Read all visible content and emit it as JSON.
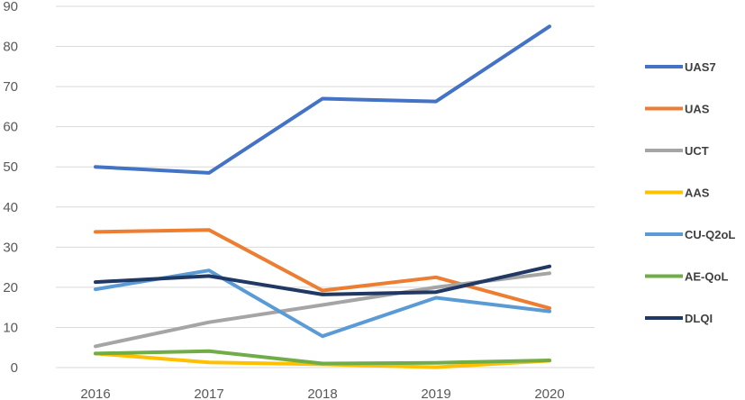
{
  "chart_data": {
    "type": "line",
    "title": "",
    "xlabel": "",
    "ylabel": "",
    "x": [
      "2016",
      "2017",
      "2018",
      "2019",
      "2020"
    ],
    "ylim": [
      0,
      90
    ],
    "yticks": [
      0,
      10,
      20,
      30,
      40,
      50,
      60,
      70,
      80,
      90
    ],
    "grid": true,
    "legend_position": "right",
    "series": [
      {
        "name": "UAS7",
        "color": "#4472C4",
        "values": [
          50,
          48.5,
          67,
          66.3,
          85
        ]
      },
      {
        "name": "UAS",
        "color": "#ED7D31",
        "values": [
          33.8,
          34.3,
          19.2,
          22.5,
          14.8
        ]
      },
      {
        "name": "UCT",
        "color": "#A5A5A5",
        "values": [
          5.3,
          11.3,
          15.6,
          20,
          23.5
        ]
      },
      {
        "name": "AAS",
        "color": "#FFC000",
        "values": [
          3.5,
          1.3,
          0.8,
          0.1,
          1.7
        ]
      },
      {
        "name": "CU-Q2oL",
        "color": "#5B9BD5",
        "values": [
          19.5,
          24.2,
          7.8,
          17.4,
          14
        ]
      },
      {
        "name": "AE-QoL",
        "color": "#70AD47",
        "values": [
          3.5,
          4.1,
          1,
          1.2,
          1.8
        ]
      },
      {
        "name": "DLQI",
        "color": "#203864",
        "values": [
          21.3,
          22.8,
          18.2,
          18.8,
          25.2
        ]
      }
    ]
  }
}
